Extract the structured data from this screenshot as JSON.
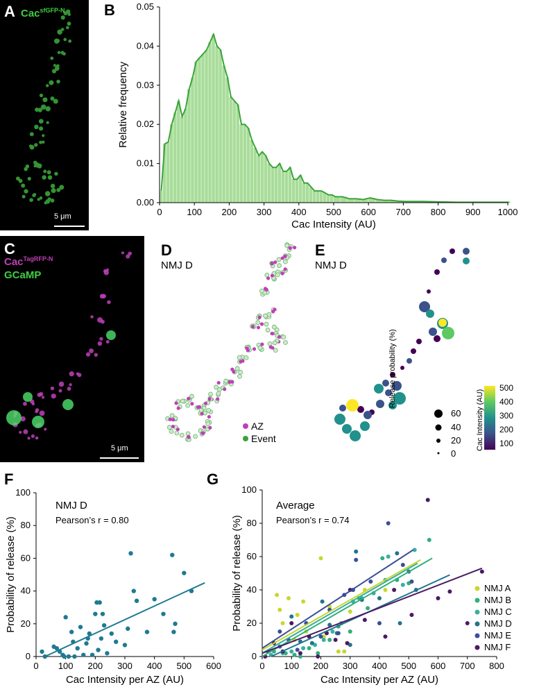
{
  "panels": {
    "A": {
      "label": "A",
      "channel_main": "Cac",
      "channel_sup": "sfGFP-N",
      "scale": "5 μm"
    },
    "B": {
      "label": "B"
    },
    "C": {
      "label": "C",
      "channel1_main": "Cac",
      "channel1_sup": "TagRFP-N",
      "channel2": "GCaMP",
      "scale": "5 μm"
    },
    "D": {
      "label": "D",
      "title": "NMJ D",
      "legend": [
        "AZ",
        "Event"
      ]
    },
    "E": {
      "label": "E",
      "title": "NMJ D",
      "size_legend_title": "Release probability (%)",
      "size_legend_values": [
        "60",
        "40",
        "20",
        "0"
      ],
      "colorbar_title": "Cac Intensity (AU)",
      "colorbar_ticks": [
        "500",
        "400",
        "300",
        "200",
        "100"
      ]
    },
    "F": {
      "label": "F",
      "title": "NMJ D",
      "stat": "Pearson’s r = 0.80"
    },
    "G": {
      "label": "G",
      "title": "Average",
      "stat": "Pearson’s r = 0.74"
    }
  },
  "colors": {
    "green": "#3aa33a",
    "green_fill": "#a9dd9a",
    "magenta": "#c03fb7",
    "teal": "#1f7a92",
    "viridis": [
      "#440154",
      "#3b528b",
      "#21918c",
      "#5ec962",
      "#fde725"
    ],
    "nmj": {
      "A": "#c8d72e",
      "B": "#2fb07a",
      "C": "#3aaea0",
      "D": "#22738f",
      "E": "#3b4e99",
      "F": "#4a1a63"
    }
  },
  "chart_data": [
    {
      "type": "area",
      "panel": "B",
      "xlabel": "Cac Intensity (AU)",
      "ylabel": "Relative frequency",
      "xlim": [
        0,
        1000
      ],
      "ylim": [
        0,
        0.05
      ],
      "xticks": [
        "0",
        "100",
        "200",
        "300",
        "400",
        "500",
        "600",
        "700",
        "800",
        "900",
        "1000"
      ],
      "yticks": [
        "0.00",
        "0.01",
        "0.02",
        "0.03",
        "0.04",
        "0.05"
      ],
      "x": [
        0,
        10,
        20,
        30,
        40,
        50,
        60,
        70,
        80,
        90,
        100,
        110,
        120,
        130,
        140,
        150,
        160,
        170,
        180,
        190,
        200,
        210,
        220,
        230,
        240,
        250,
        260,
        270,
        280,
        290,
        300,
        310,
        320,
        330,
        340,
        350,
        360,
        370,
        380,
        390,
        400,
        410,
        420,
        430,
        440,
        450,
        460,
        470,
        480,
        490,
        500,
        520,
        540,
        560,
        580,
        600,
        620,
        640,
        660,
        680,
        700,
        750,
        800,
        850,
        900,
        950,
        1000
      ],
      "values": [
        0.003,
        0.015,
        0.0155,
        0.02,
        0.023,
        0.026,
        0.022,
        0.024,
        0.029,
        0.032,
        0.036,
        0.037,
        0.038,
        0.039,
        0.041,
        0.043,
        0.04,
        0.039,
        0.035,
        0.032,
        0.027,
        0.026,
        0.025,
        0.02,
        0.02,
        0.019,
        0.016,
        0.014,
        0.012,
        0.013,
        0.012,
        0.01,
        0.009,
        0.009,
        0.01,
        0.008,
        0.008,
        0.009,
        0.006,
        0.006,
        0.007,
        0.005,
        0.005,
        0.004,
        0.003,
        0.003,
        0.003,
        0.0025,
        0.002,
        0.002,
        0.0015,
        0.0015,
        0.001,
        0.001,
        0.0008,
        0.0012,
        0.0008,
        0.0006,
        0.0006,
        0.0004,
        0.0003,
        0.0003,
        0.0002,
        0.0001,
        0.0001,
        0.0001,
        0.0001
      ]
    },
    {
      "type": "scatter",
      "panel": "F",
      "xlabel": "Cac Intensity per AZ (AU)",
      "ylabel": "Probability of release (%)",
      "xlim": [
        0,
        600
      ],
      "ylim": [
        0,
        100
      ],
      "xticks": [
        "0",
        "100",
        "200",
        "300",
        "400",
        "500",
        "600"
      ],
      "yticks": [
        "0",
        "20",
        "40",
        "60",
        "80",
        "100"
      ],
      "points": [
        [
          20,
          3
        ],
        [
          30,
          0
        ],
        [
          60,
          6
        ],
        [
          70,
          5
        ],
        [
          80,
          3
        ],
        [
          90,
          1
        ],
        [
          95,
          0
        ],
        [
          100,
          24
        ],
        [
          110,
          0
        ],
        [
          120,
          15
        ],
        [
          125,
          9
        ],
        [
          130,
          0
        ],
        [
          140,
          5
        ],
        [
          150,
          18
        ],
        [
          160,
          1
        ],
        [
          170,
          8
        ],
        [
          175,
          11
        ],
        [
          180,
          14
        ],
        [
          190,
          1
        ],
        [
          200,
          26
        ],
        [
          205,
          33
        ],
        [
          210,
          4
        ],
        [
          215,
          33
        ],
        [
          220,
          11
        ],
        [
          225,
          26
        ],
        [
          230,
          19
        ],
        [
          240,
          2
        ],
        [
          255,
          14
        ],
        [
          270,
          9
        ],
        [
          300,
          7
        ],
        [
          310,
          17
        ],
        [
          320,
          63
        ],
        [
          330,
          40
        ],
        [
          340,
          34
        ],
        [
          375,
          15
        ],
        [
          400,
          35
        ],
        [
          430,
          26
        ],
        [
          460,
          62
        ],
        [
          465,
          15
        ],
        [
          470,
          20
        ],
        [
          500,
          51
        ],
        [
          525,
          40
        ]
      ],
      "fit": [
        [
          30,
          0
        ],
        [
          570,
          45
        ]
      ]
    },
    {
      "type": "scatter",
      "panel": "G",
      "xlabel": "Cac Intensity per AZ (AU)",
      "ylabel": "Probability of release (%)",
      "xlim": [
        0,
        800
      ],
      "ylim": [
        0,
        100
      ],
      "xticks": [
        "0",
        "100",
        "200",
        "300",
        "400",
        "500",
        "600",
        "700",
        "800"
      ],
      "yticks": [
        "0",
        "20",
        "40",
        "60",
        "80",
        "100"
      ],
      "legend": [
        "NMJ A",
        "NMJ B",
        "NMJ C",
        "NMJ D",
        "NMJ E",
        "NMJ F"
      ],
      "series": [
        {
          "name": "NMJ A",
          "fit": [
            [
              0,
              4
            ],
            [
              540,
              58
            ]
          ],
          "points": [
            [
              50,
              37
            ],
            [
              60,
              28
            ],
            [
              70,
              20
            ],
            [
              90,
              35
            ],
            [
              110,
              10
            ],
            [
              120,
              25
            ],
            [
              140,
              33
            ],
            [
              150,
              15
            ],
            [
              170,
              8
            ],
            [
              200,
              59
            ],
            [
              210,
              12
            ],
            [
              230,
              30
            ],
            [
              260,
              3
            ],
            [
              280,
              3
            ],
            [
              300,
              27
            ],
            [
              350,
              40
            ],
            [
              420,
              40
            ]
          ]
        },
        {
          "name": "NMJ B",
          "fit": [
            [
              0,
              0
            ],
            [
              580,
              59
            ]
          ],
          "points": [
            [
              40,
              3
            ],
            [
              80,
              2
            ],
            [
              110,
              1
            ],
            [
              130,
              0
            ],
            [
              160,
              5
            ],
            [
              190,
              2
            ],
            [
              230,
              10
            ],
            [
              260,
              18
            ],
            [
              300,
              15
            ],
            [
              330,
              35
            ],
            [
              360,
              29
            ],
            [
              410,
              59
            ],
            [
              460,
              46
            ],
            [
              500,
              44
            ],
            [
              570,
              70
            ]
          ]
        },
        {
          "name": "NMJ C",
          "fit": [
            [
              0,
              2
            ],
            [
              530,
              56
            ]
          ],
          "points": [
            [
              30,
              1
            ],
            [
              70,
              2
            ],
            [
              100,
              3
            ],
            [
              140,
              5
            ],
            [
              180,
              7
            ],
            [
              210,
              10
            ],
            [
              240,
              15
            ],
            [
              270,
              20
            ],
            [
              310,
              33
            ],
            [
              340,
              35
            ],
            [
              380,
              38
            ],
            [
              420,
              46
            ],
            [
              430,
              60
            ],
            [
              480,
              43
            ],
            [
              520,
              64
            ]
          ]
        },
        {
          "name": "NMJ D",
          "fit": [
            [
              30,
              0
            ],
            [
              640,
              49
            ]
          ],
          "points": [
            [
              60,
              6
            ],
            [
              100,
              24
            ],
            [
              130,
              9
            ],
            [
              170,
              8
            ],
            [
              205,
              33
            ],
            [
              230,
              19
            ],
            [
              255,
              14
            ],
            [
              300,
              7
            ],
            [
              320,
              63
            ],
            [
              340,
              34
            ],
            [
              400,
              35
            ],
            [
              460,
              62
            ],
            [
              470,
              20
            ],
            [
              500,
              51
            ],
            [
              525,
              40
            ]
          ]
        },
        {
          "name": "NMJ E",
          "fit": [
            [
              0,
              5
            ],
            [
              515,
              64
            ]
          ],
          "points": [
            [
              20,
              3
            ],
            [
              60,
              15
            ],
            [
              90,
              10
            ],
            [
              120,
              4
            ],
            [
              150,
              20
            ],
            [
              200,
              12
            ],
            [
              230,
              28
            ],
            [
              260,
              14
            ],
            [
              280,
              37
            ],
            [
              310,
              40
            ],
            [
              320,
              58
            ],
            [
              370,
              45
            ],
            [
              400,
              20
            ],
            [
              430,
              80
            ],
            [
              480,
              55
            ],
            [
              510,
              45
            ]
          ]
        },
        {
          "name": "NMJ F",
          "fit": [
            [
              0,
              2
            ],
            [
              750,
              53
            ]
          ],
          "points": [
            [
              10,
              0
            ],
            [
              40,
              8
            ],
            [
              70,
              3
            ],
            [
              100,
              20
            ],
            [
              130,
              2
            ],
            [
              160,
              12
            ],
            [
              190,
              0
            ],
            [
              220,
              14
            ],
            [
              250,
              10
            ],
            [
              290,
              8
            ],
            [
              300,
              40
            ],
            [
              350,
              22
            ],
            [
              420,
              12
            ],
            [
              450,
              40
            ],
            [
              510,
              25
            ],
            [
              565,
              94
            ],
            [
              600,
              35
            ],
            [
              640,
              39
            ],
            [
              700,
              20
            ],
            [
              750,
              51
            ]
          ]
        }
      ]
    }
  ]
}
